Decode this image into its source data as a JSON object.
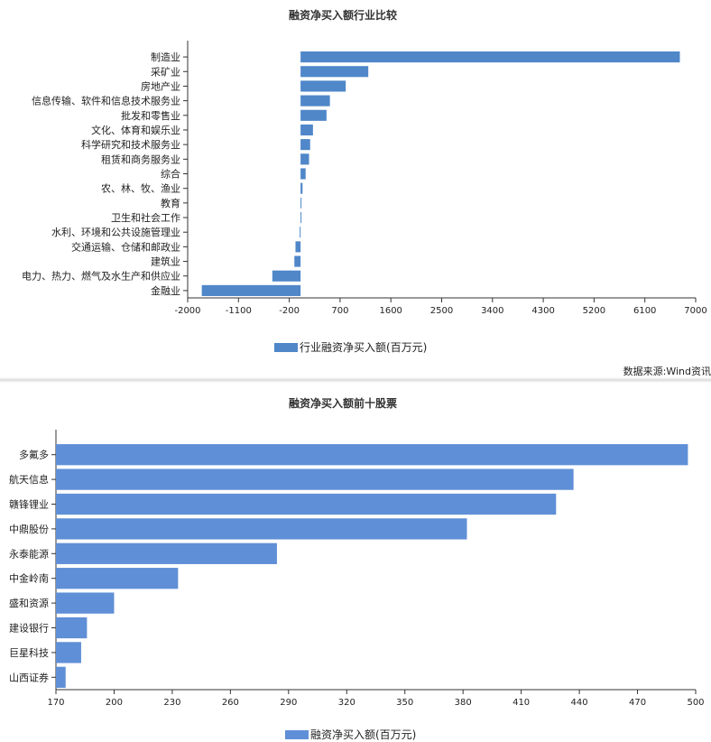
{
  "chart_data": [
    {
      "type": "bar",
      "orientation": "horizontal",
      "title": "融资净买入额行业比较",
      "categories": [
        "制造业",
        "采矿业",
        "房地产业",
        "信息传输、软件和信息技术服务业",
        "批发和零售业",
        "文化、体育和娱乐业",
        "科学研究和技术服务业",
        "租赁和商务服务业",
        "综合",
        "农、林、牧、渔业",
        "教育",
        "卫生和社会工作",
        "水利、环境和公共设施管理业",
        "交通运输、仓储和邮政业",
        "建筑业",
        "电力、热力、燃气及水生产和供应业",
        "金融业"
      ],
      "values": [
        6720,
        1200,
        800,
        520,
        460,
        220,
        170,
        150,
        90,
        35,
        15,
        10,
        -15,
        -90,
        -110,
        -500,
        -1750
      ],
      "xlim": [
        -2000,
        7000
      ],
      "xticks": [
        -2000,
        -1100,
        -200,
        700,
        1600,
        2500,
        3400,
        4300,
        5200,
        6100,
        7000
      ],
      "series_name": "行业融资净买入额(百万元)",
      "color": "#4f87c9",
      "legend_position": "bottom",
      "source_text": "数据来源:Wind资讯"
    },
    {
      "type": "bar",
      "orientation": "horizontal",
      "title": "融资净买入额前十股票",
      "categories": [
        "多氟多",
        "航天信息",
        "赣锋锂业",
        "中鼎股份",
        "永泰能源",
        "中金岭南",
        "盛和资源",
        "建设银行",
        "巨星科技",
        "山西证券"
      ],
      "values": [
        496,
        437,
        428,
        382,
        284,
        233,
        200,
        186,
        183,
        175
      ],
      "xlim": [
        170,
        500
      ],
      "xticks": [
        170,
        200,
        230,
        260,
        290,
        320,
        350,
        380,
        410,
        440,
        470,
        500
      ],
      "series_name": "融资净买入额(百万元)",
      "color": "#5f8fd6",
      "legend_position": "bottom"
    }
  ]
}
